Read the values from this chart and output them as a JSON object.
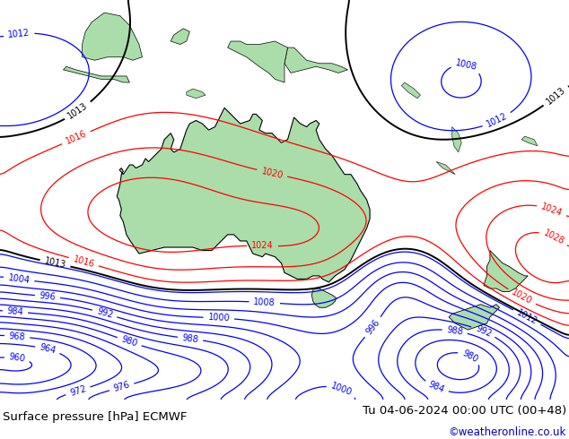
{
  "title_left": "Surface pressure [hPa] ECMWF",
  "title_right": "Tu 04-06-2024 00:00 UTC (00+48)",
  "credit": "©weatheronline.co.uk",
  "background_color": "#c8ccd4",
  "land_color": "#aaddaa",
  "border_color": "#000000",
  "footer_bg": "#ffffff",
  "footer_text_color": "#000000",
  "credit_color": "#0000bb",
  "title_fontsize": 9.5,
  "credit_fontsize": 8.5,
  "figsize": [
    6.34,
    4.9
  ],
  "dpi": 100,
  "map_extent": [
    95,
    185,
    -58,
    5
  ],
  "label_fontsize": 7
}
